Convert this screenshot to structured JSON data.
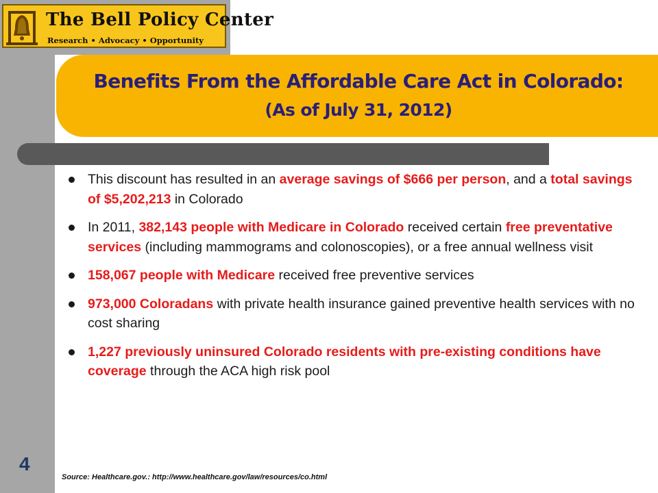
{
  "logo": {
    "name": "The Bell Policy Center",
    "tagline": "Research • Advocacy • Opportunity"
  },
  "title": {
    "line1": "Benefits From the Affordable Care Act in Colorado:",
    "line2": "(As of July 31, 2012)"
  },
  "bullets": [
    {
      "segments": [
        {
          "text": "This discount has resulted in an ",
          "highlight": false
        },
        {
          "text": "average savings of $666 per person",
          "highlight": true
        },
        {
          "text": ", and a ",
          "highlight": false
        },
        {
          "text": "total savings of $5,202,213",
          "highlight": true
        },
        {
          "text": " in Colorado",
          "highlight": false
        }
      ]
    },
    {
      "segments": [
        {
          "text": "In 2011, ",
          "highlight": false
        },
        {
          "text": "382,143 people with Medicare in Colorado",
          "highlight": true
        },
        {
          "text": " received certain ",
          "highlight": false
        },
        {
          "text": "free preventative services",
          "highlight": true
        },
        {
          "text": " (including mammograms and colonoscopies), or a free annual wellness visit",
          "highlight": false
        }
      ]
    },
    {
      "segments": [
        {
          "text": "158,067 people with Medicare",
          "highlight": true
        },
        {
          "text": " received free preventive services",
          "highlight": false
        }
      ]
    },
    {
      "segments": [
        {
          "text": "973,000 Coloradans",
          "highlight": true
        },
        {
          "text": " with private health insurance gained preventive health services with no cost sharing",
          "highlight": false
        }
      ]
    },
    {
      "segments": [
        {
          "text": "1,227 previously uninsured Colorado residents with pre-existing conditions have coverage",
          "highlight": true
        },
        {
          "text": " through the ACA high risk pool",
          "highlight": false
        }
      ]
    }
  ],
  "page_number": "4",
  "source": "Source:  Healthcare.gov.: http://www.healthcare.gov/law/resources/co.html",
  "colors": {
    "banner": "#f8b400",
    "title_text": "#2a1f78",
    "highlight": "#e61b1b",
    "side_strip": "#a6a6a6",
    "rule_bar": "#595959",
    "logo_bg": "#f8c51c"
  },
  "icons": [
    "bell-icon"
  ]
}
